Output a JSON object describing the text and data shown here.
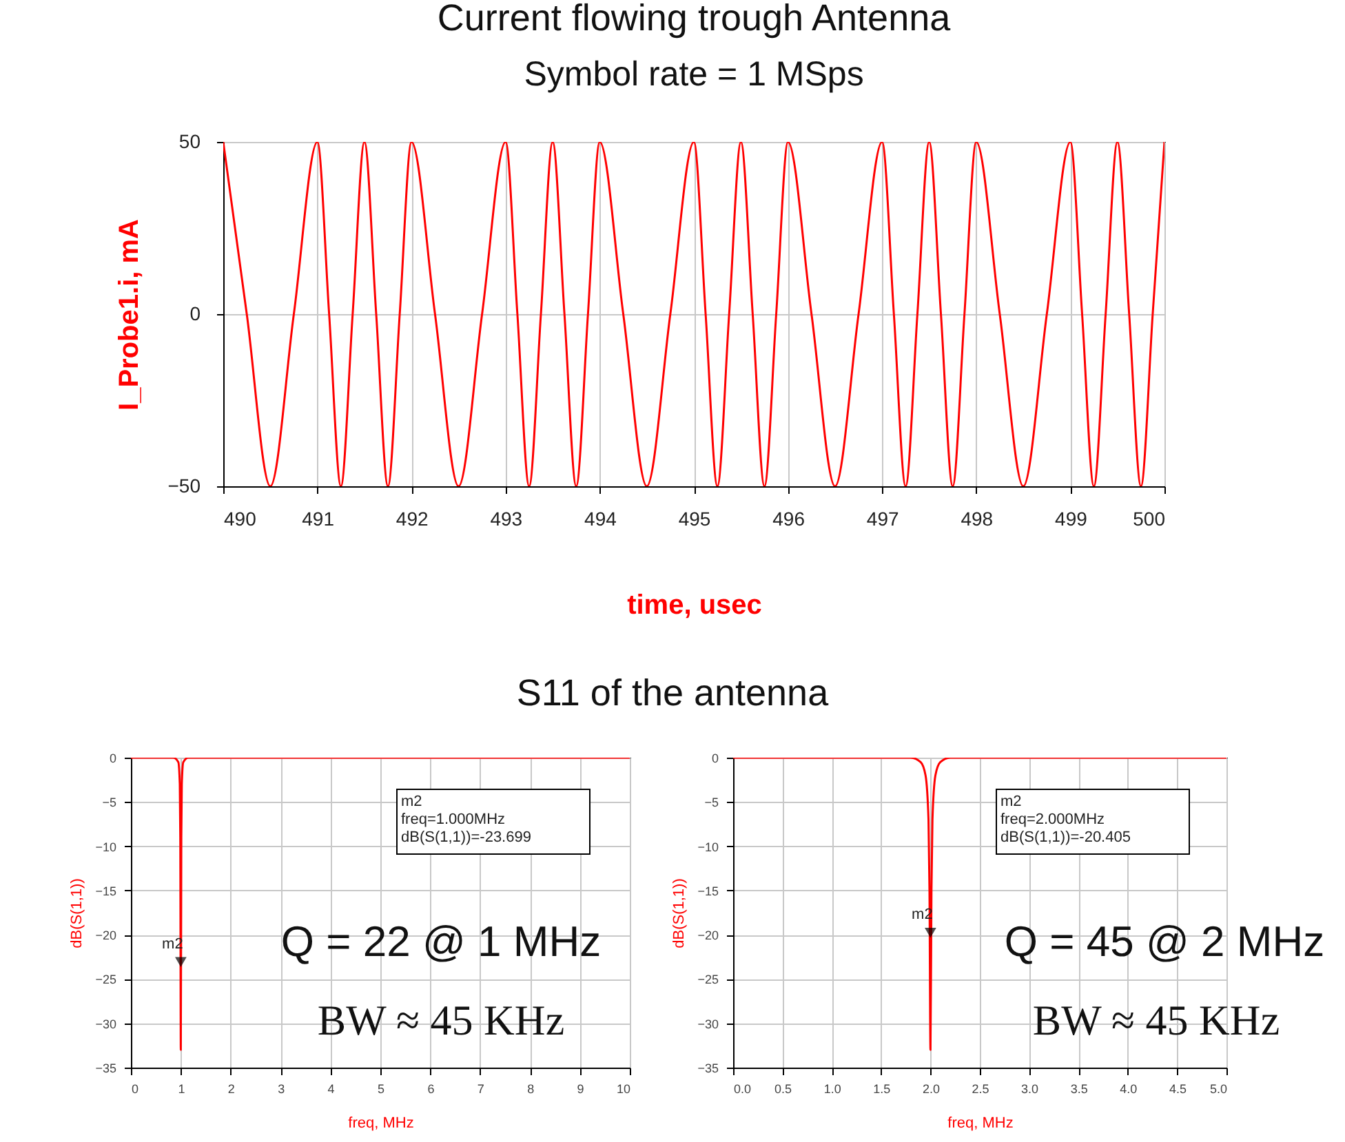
{
  "chart_data": [
    {
      "type": "line",
      "title": "Current flowing trough Antenna",
      "subtitle": "Symbol rate = 1 MSps",
      "xlabel": "time, usec",
      "ylabel": "I_Probe1.i, mA",
      "xlim": [
        490,
        500
      ],
      "xticks": [
        490,
        491,
        492,
        493,
        494,
        495,
        496,
        497,
        498,
        499,
        500
      ],
      "ylim": [
        -50,
        50
      ],
      "yticks": [
        -50,
        0,
        50
      ],
      "grid": true,
      "series": [
        {
          "color": "#ff0000",
          "x": [
            490,
            490.25,
            490.5,
            490.75,
            491,
            491.125,
            491.25,
            491.375,
            491.5,
            491.625,
            491.75,
            491.875,
            492,
            492.25,
            492.5,
            492.75,
            493,
            493.125,
            493.25,
            493.375,
            493.5,
            493.625,
            493.75,
            493.875,
            494,
            494.25,
            494.5,
            494.75,
            495,
            495.125,
            495.25,
            495.375,
            495.5,
            495.625,
            495.75,
            495.875,
            496,
            496.25,
            496.5,
            496.75,
            497,
            497.125,
            497.25,
            497.375,
            497.5,
            497.625,
            497.75,
            497.875,
            498,
            498.25,
            498.5,
            498.75,
            499,
            499.125,
            499.25,
            499.375,
            499.5,
            499.625,
            499.75,
            499.875,
            500
          ],
          "values": [
            50,
            0,
            -50,
            0,
            50,
            0,
            -50,
            0,
            50,
            0,
            -50,
            0,
            50,
            0,
            -50,
            0,
            50,
            0,
            -50,
            0,
            50,
            0,
            -50,
            0,
            50,
            0,
            -50,
            0,
            50,
            0,
            -50,
            0,
            50,
            0,
            -50,
            0,
            50,
            0,
            -50,
            0,
            50,
            0,
            -50,
            0,
            50,
            0,
            -50,
            0,
            50,
            0,
            -50,
            0,
            50,
            0,
            -50,
            0,
            50,
            0,
            -50,
            0,
            50
          ]
        }
      ]
    },
    {
      "type": "line",
      "title": "S11 of the antenna",
      "xlabel": "freq, MHz",
      "ylabel": "dB(S(1,1))",
      "xlim": [
        0,
        10
      ],
      "xticks": [
        0,
        1,
        2,
        3,
        4,
        5,
        6,
        7,
        8,
        9,
        10
      ],
      "ylim": [
        -35,
        0
      ],
      "yticks": [
        -35,
        -30,
        -25,
        -20,
        -15,
        -10,
        -5,
        0
      ],
      "grid": true,
      "series": [
        {
          "color": "#ff0000",
          "x": [
            0,
            0.85,
            0.95,
            0.98,
            0.99,
            1.0,
            1.01,
            1.02,
            1.05,
            1.15,
            10
          ],
          "values": [
            0,
            0,
            -0.5,
            -3,
            -9,
            -33,
            -9,
            -3,
            -0.5,
            0,
            0
          ]
        }
      ],
      "annotations": [
        {
          "text": "m2",
          "x": 1,
          "y": -23.699
        },
        "m2\nfreq=1.000MHz\ndB(S(1,1))=-23.699",
        "Q = 22 @ 1 MHz",
        "BW ≈ 45 KHz"
      ]
    },
    {
      "type": "line",
      "xlabel": "freq, MHz",
      "ylabel": "dB(S(1,1))",
      "xlim": [
        0,
        5
      ],
      "xticks": [
        {
          "value": 0,
          "label": "0.0"
        },
        {
          "value": 0.5,
          "label": "0.5"
        },
        {
          "value": 1,
          "label": "1.0"
        },
        {
          "value": 1.5,
          "label": "1.5"
        },
        {
          "value": 2,
          "label": "2.0"
        },
        {
          "value": 2.5,
          "label": "2.5"
        },
        {
          "value": 3,
          "label": "3.0"
        },
        {
          "value": 3.5,
          "label": "3.5"
        },
        {
          "value": 4,
          "label": "4.0"
        },
        {
          "value": 4.5,
          "label": "4.5"
        },
        {
          "value": 5,
          "label": "5.0"
        }
      ],
      "ylim": [
        -35,
        0
      ],
      "yticks": [
        -35,
        -30,
        -25,
        -20,
        -15,
        -10,
        -5,
        0
      ],
      "grid": true,
      "series": [
        {
          "color": "#ff0000",
          "x": [
            0,
            1.8,
            1.9,
            1.95,
            1.98,
            1.99,
            2.0,
            2.01,
            2.02,
            2.05,
            2.1,
            2.2,
            5
          ],
          "values": [
            0,
            0,
            -0.5,
            -2,
            -7,
            -15,
            -33,
            -15,
            -7,
            -2,
            -0.5,
            0,
            0
          ]
        }
      ],
      "annotations": [
        {
          "text": "m2",
          "x": 2,
          "y": -20.405
        },
        "m2\nfreq=2.000MHz\ndB(S(1,1))=-20.405",
        "Q = 45 @ 2 MHz",
        "BW ≈ 45 KHz"
      ]
    }
  ]
}
